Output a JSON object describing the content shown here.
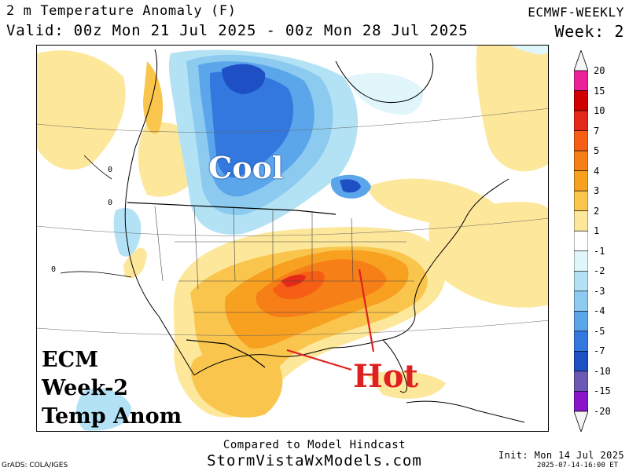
{
  "header": {
    "title": "2 m Temperature Anomaly (F)",
    "valid": "Valid: 00z Mon 21 Jul 2025 - 00z Mon 28 Jul 2025",
    "model": "ECMWF-WEEKLY",
    "week": "Week: 2"
  },
  "annotations": {
    "cool": "Cool",
    "hot": "Hot",
    "ecm_line1": "ECM",
    "ecm_line2": "Week-2",
    "ecm_line3": "Temp Anom"
  },
  "map": {
    "contour_labels": [
      "0",
      "0",
      "0"
    ]
  },
  "colorbar": {
    "labels": [
      "20",
      "15",
      "10",
      "7",
      "5",
      "4",
      "3",
      "2",
      "1",
      "-1",
      "-2",
      "-3",
      "-4",
      "-5",
      "-7",
      "-10",
      "-15",
      "-20"
    ],
    "colors": [
      "#f5f5f5",
      "#ee1f9a",
      "#d00000",
      "#e52a1a",
      "#f55e14",
      "#f77f18",
      "#f8a020",
      "#f9c54d",
      "#fde79a",
      "#ffffff",
      "#e0f6fb",
      "#b4e2f5",
      "#8ccaf0",
      "#5ba6ea",
      "#3278de",
      "#1e4fc4",
      "#6b59b5",
      "#8a14c8",
      "#f5f5f5"
    ]
  },
  "footer": {
    "compared": "Compared to Model Hindcast",
    "site": "StormVistaWxModels.com",
    "grads": "GrADS: COLA/IGES",
    "init": "Init: Mon 14 Jul 2025",
    "stamp": "2025-07-14-16:00 ET"
  }
}
